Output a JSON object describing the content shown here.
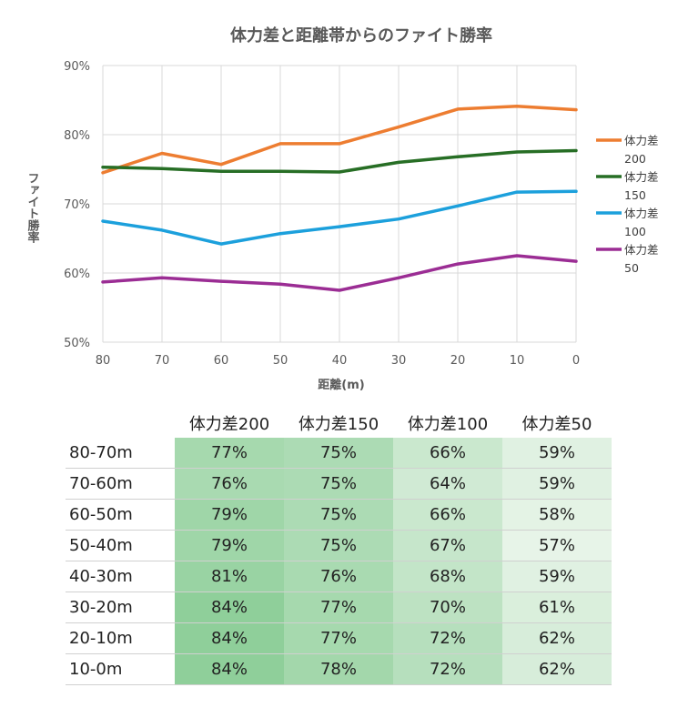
{
  "chart_data": {
    "type": "line",
    "title": "体力差と距離帯からのファイト勝率",
    "xlabel": "距離(m)",
    "ylabel": "ファイト勝率",
    "x": [
      80,
      70,
      60,
      50,
      40,
      30,
      20,
      10,
      0
    ],
    "x_tick_labels": [
      "80",
      "70",
      "60",
      "50",
      "40",
      "30",
      "20",
      "10",
      "0"
    ],
    "x_reversed": true,
    "ylim": [
      0.5,
      0.9
    ],
    "y_ticks": [
      0.5,
      0.6,
      0.7,
      0.8,
      0.9
    ],
    "y_tick_labels": [
      "50%",
      "60%",
      "70%",
      "80%",
      "90%"
    ],
    "grid": "vertical-and-horizontal",
    "legend_position": "right",
    "series": [
      {
        "name": "体力差200",
        "legend_lines": [
          "体力差",
          "200"
        ],
        "color": "#ed7d31",
        "values": [
          0.745,
          0.773,
          0.757,
          0.787,
          0.787,
          0.811,
          0.837,
          0.841,
          0.836
        ]
      },
      {
        "name": "体力差150",
        "legend_lines": [
          "体力差",
          "150"
        ],
        "color": "#276e25",
        "values": [
          0.753,
          0.751,
          0.747,
          0.747,
          0.746,
          0.76,
          0.768,
          0.775,
          0.777
        ]
      },
      {
        "name": "体力差100",
        "legend_lines": [
          "体力差",
          "100"
        ],
        "color": "#1ca0dc",
        "values": [
          0.675,
          0.662,
          0.642,
          0.657,
          0.667,
          0.678,
          0.697,
          0.717,
          0.718
        ]
      },
      {
        "name": "体力差50",
        "legend_lines": [
          "体力差",
          "50"
        ],
        "color": "#9b2d94",
        "values": [
          0.587,
          0.593,
          0.588,
          0.584,
          0.575,
          0.593,
          0.613,
          0.625,
          0.617
        ]
      }
    ]
  },
  "table": {
    "headers": [
      "体力差200",
      "体力差150",
      "体力差100",
      "体力差50"
    ],
    "rows": [
      {
        "label": "80-70m",
        "cells": [
          "77%",
          "75%",
          "66%",
          "59%"
        ],
        "values": [
          77,
          75,
          66,
          59
        ]
      },
      {
        "label": "70-60m",
        "cells": [
          "76%",
          "75%",
          "64%",
          "59%"
        ],
        "values": [
          76,
          75,
          64,
          59
        ]
      },
      {
        "label": "60-50m",
        "cells": [
          "79%",
          "75%",
          "66%",
          "58%"
        ],
        "values": [
          79,
          75,
          66,
          58
        ]
      },
      {
        "label": "50-40m",
        "cells": [
          "79%",
          "75%",
          "67%",
          "57%"
        ],
        "values": [
          79,
          75,
          67,
          57
        ]
      },
      {
        "label": "40-30m",
        "cells": [
          "81%",
          "76%",
          "68%",
          "59%"
        ],
        "values": [
          81,
          76,
          68,
          59
        ]
      },
      {
        "label": "30-20m",
        "cells": [
          "84%",
          "77%",
          "70%",
          "61%"
        ],
        "values": [
          84,
          77,
          70,
          61
        ]
      },
      {
        "label": "20-10m",
        "cells": [
          "84%",
          "77%",
          "72%",
          "62%"
        ],
        "values": [
          84,
          77,
          72,
          62
        ]
      },
      {
        "label": "10-0m",
        "cells": [
          "84%",
          "78%",
          "72%",
          "62%"
        ],
        "values": [
          84,
          78,
          72,
          62
        ]
      }
    ],
    "heat_colors": {
      "low": "#e7f4e8",
      "high": "#8fcf9a"
    }
  }
}
